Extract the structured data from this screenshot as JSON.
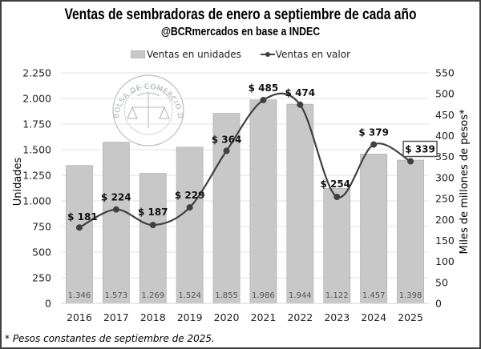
{
  "chart_data": {
    "type": "bar",
    "title": "Ventas de sembradoras de enero a septiembre de cada año",
    "subtitle": "@BCRmercados en base a INDEC",
    "categories": [
      "2016",
      "2017",
      "2018",
      "2019",
      "2020",
      "2021",
      "2022",
      "2023",
      "2024",
      "2025"
    ],
    "series": [
      {
        "name": "Ventas en unidades",
        "type": "bar",
        "axis": "left",
        "values": [
          1346,
          1573,
          1269,
          1524,
          1855,
          1986,
          1944,
          1122,
          1457,
          1398
        ],
        "labels": [
          "1.346",
          "1.573",
          "1.269",
          "1.524",
          "1.855",
          "1.986",
          "1.944",
          "1.122",
          "1.457",
          "1.398"
        ],
        "color": "#c8c8c8"
      },
      {
        "name": "Ventas en valor",
        "type": "line",
        "smooth": true,
        "axis": "right",
        "values": [
          181,
          224,
          187,
          229,
          364,
          485,
          474,
          254,
          379,
          339
        ],
        "labels": [
          "$ 181",
          "$ 224",
          "$ 187",
          "$ 229",
          "$ 364",
          "$ 485",
          "$ 474",
          "$ 254",
          "$ 379",
          "$ 339"
        ],
        "highlighted_label_index": 9,
        "color": "#404040"
      }
    ],
    "ylabel": "Unidades",
    "ylim": [
      0,
      2250
    ],
    "yticks": [
      0,
      250,
      500,
      750,
      1000,
      1250,
      1500,
      1750,
      2000,
      2250
    ],
    "ytick_labels": [
      "0",
      "250",
      "500",
      "750",
      "1.000",
      "1.250",
      "1.500",
      "1.750",
      "2.000",
      "2.250"
    ],
    "y2label": "Miles de millones de pesos*",
    "y2lim": [
      0,
      550
    ],
    "y2ticks": [
      0,
      50,
      100,
      150,
      200,
      250,
      300,
      350,
      400,
      450,
      500,
      550
    ],
    "y2tick_labels": [
      "0",
      "50",
      "100",
      "150",
      "200",
      "250",
      "300",
      "350",
      "400",
      "450",
      "500",
      "550"
    ],
    "grid": true,
    "legend_position": "top-center",
    "legend": [
      "Ventas en unidades",
      "Ventas en valor"
    ],
    "watermark": "Bolsa de Comercio de Rosario",
    "footnote": "* Pesos constantes de septiembre de 2025."
  },
  "colors": {
    "bar": "#c8c8c8",
    "bar_border": "#b4b4b4",
    "line": "#404040",
    "grid": "#e2e2e2",
    "bar_label": "#555555"
  }
}
